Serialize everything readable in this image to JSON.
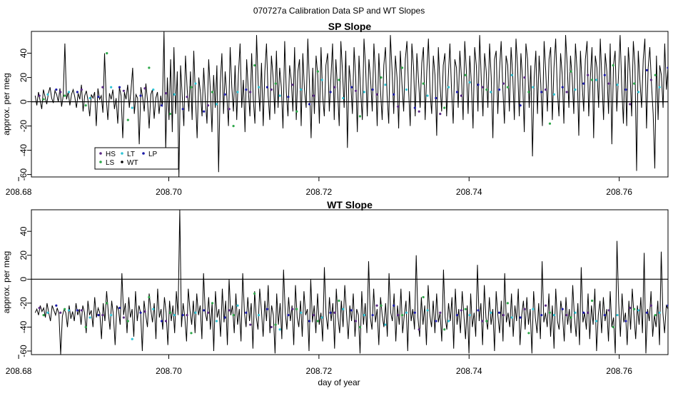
{
  "figure": {
    "title": "070727a   Calibration Data SP and WT Slopes",
    "xlabel": "day of year"
  },
  "chart_data": [
    {
      "type": "line",
      "title": "SP Slope",
      "ylabel": "approx. per meg",
      "xlim": [
        208.6817,
        208.7665
      ],
      "ylim": [
        -62,
        58
      ],
      "x_ticks": [
        "208.68",
        "208.70",
        "208.72",
        "208.74",
        "208.76"
      ],
      "y_ticks": [
        "-60",
        "-40",
        "-20",
        "0",
        "20",
        "40"
      ],
      "reference_line": 0,
      "x_start": 208.6822,
      "x_end": 208.7665,
      "series": [
        {
          "name": "",
          "color": "#000000",
          "values": [
            5,
            -3,
            8,
            1,
            -6,
            10,
            4,
            -2,
            7,
            12,
            3,
            -1,
            9,
            6,
            0,
            11,
            -4,
            5,
            48,
            2,
            8,
            -3,
            6,
            10,
            4,
            -5,
            7,
            2,
            14,
            -8,
            5,
            9,
            1,
            -12,
            6,
            3,
            8,
            -20,
            11,
            2,
            5,
            -9,
            40,
            4,
            -15,
            7,
            2,
            10,
            -6,
            3,
            -18,
            12,
            5,
            -30,
            8,
            2,
            14,
            -5,
            9,
            28,
            -10,
            6,
            3,
            -35,
            12,
            4,
            -8,
            15,
            1,
            -22,
            6,
            10,
            -14,
            3,
            8,
            -10,
            5,
            -4,
            58,
            -40,
            20,
            -15,
            35,
            -25,
            45,
            -10,
            25,
            -62,
            30,
            5,
            -20,
            38,
            10,
            -8,
            25,
            -15,
            42,
            5,
            -30,
            20,
            8,
            -12,
            28,
            2,
            -18,
            35,
            10,
            -25,
            22,
            -5,
            30,
            -58,
            15,
            40,
            -10,
            25,
            5,
            -20,
            45,
            12,
            -8,
            30,
            -15,
            22,
            48,
            -5,
            18,
            -25,
            35,
            10,
            -12,
            40,
            2,
            -18,
            55,
            15,
            -8,
            32,
            -20,
            25,
            48,
            5,
            -15,
            38,
            20,
            -10,
            42,
            -5,
            28,
            12,
            -22,
            50,
            8,
            -12,
            30,
            18,
            -8,
            45,
            -15,
            25,
            35,
            -20,
            40,
            10,
            -5,
            52,
            15,
            -30,
            28,
            -10,
            38,
            22,
            -18,
            45,
            5,
            -12,
            30,
            40,
            -8,
            20,
            48,
            -15,
            35,
            10,
            -20,
            50,
            25,
            -5,
            42,
            -38,
            30,
            15,
            -10,
            45,
            20,
            -25,
            38,
            8,
            -15,
            52,
            28,
            -12,
            35,
            18,
            -8,
            48,
            22,
            -20,
            40,
            10,
            -15,
            30,
            45,
            5,
            -18,
            55,
            25,
            -10,
            38,
            20,
            -22,
            42,
            15,
            -8,
            35,
            50,
            10,
            -20,
            48,
            28,
            -12,
            40,
            18,
            -5,
            32,
            45,
            -15,
            25,
            52,
            8,
            -10,
            38,
            22,
            -28,
            45,
            15,
            -8,
            30,
            40,
            -12,
            20,
            48,
            10,
            -18,
            35,
            28,
            -5,
            42,
            20,
            -15,
            50,
            25,
            -10,
            38,
            15,
            -22,
            45,
            30,
            -8,
            55,
            18,
            -12,
            40,
            25,
            -5,
            48,
            20,
            -30,
            35,
            42,
            -10,
            25,
            50,
            12,
            -18,
            38,
            30,
            -8,
            45,
            22,
            -15,
            52,
            28,
            -12,
            40,
            18,
            -25,
            48,
            35,
            -5,
            30,
            -45,
            20,
            42,
            -10,
            38,
            15,
            -20,
            50,
            25,
            -8,
            35,
            45,
            -15,
            28,
            52,
            10,
            -12,
            40,
            22,
            -18,
            55,
            30,
            -5,
            38,
            20,
            -10,
            48,
            25,
            -28,
            42,
            15,
            -8,
            35,
            50,
            -12,
            20,
            45,
            -30,
            38,
            28,
            -5,
            52,
            18,
            -15,
            40,
            25,
            -10,
            48,
            -35,
            30,
            42,
            -8,
            20,
            55,
            12,
            -18,
            38,
            -20,
            45,
            25,
            -12,
            50,
            30,
            -57,
            42,
            18,
            -5,
            35,
            52,
            -22,
            28,
            45,
            15,
            -10,
            -55,
            38,
            -15,
            30,
            22,
            -5,
            48,
            10,
            28
          ]
        },
        {
          "name": "HS",
          "color": "#5b2a86",
          "marker": "dot",
          "values": [
            5,
            8,
            10,
            12,
            9,
            11,
            7,
            4,
            -3,
            -6,
            8,
            10,
            14,
            5,
            12,
            9,
            6,
            -4,
            -8,
            -10,
            5,
            12,
            15,
            20,
            10,
            8,
            22,
            15,
            -2,
            18
          ]
        },
        {
          "name": "LS",
          "color": "#2ea84a",
          "marker": "dot",
          "values": [
            2,
            5,
            -3,
            40,
            -15,
            28,
            -10,
            12,
            8,
            -20,
            30,
            15,
            -8,
            25,
            18,
            -12,
            20,
            28,
            15,
            -5,
            22,
            10,
            12,
            8,
            -18,
            25,
            18,
            30,
            15,
            22
          ]
        },
        {
          "name": "LT",
          "color": "#2fc4d6",
          "marker": "dot",
          "values": [
            6,
            8,
            3,
            12,
            -5,
            10,
            6,
            15,
            -2,
            8,
            12,
            5,
            10,
            18,
            3,
            8,
            14,
            10,
            5,
            12,
            16,
            8,
            22,
            12,
            6,
            10,
            18,
            14,
            8,
            12
          ]
        },
        {
          "name": "WT",
          "color": "#000000",
          "marker": "dot",
          "values": []
        },
        {
          "name": "LP",
          "color": "#1a1aa8",
          "marker": "dot",
          "values": [
            10,
            8,
            4,
            12,
            5,
            -3,
            -6,
            -8,
            6,
            10,
            12,
            4,
            -2,
            8,
            12,
            10,
            6,
            -5,
            3,
            8,
            14,
            10,
            -3,
            8,
            12,
            15,
            22,
            10,
            26,
            28
          ]
        }
      ],
      "legend": {
        "placement": "bottom-left",
        "entries": [
          "HS",
          "LS",
          "LT",
          "WT",
          "LP"
        ]
      }
    },
    {
      "type": "line",
      "title": "WT Slope",
      "ylabel": "approx. per meg",
      "xlim": [
        208.6817,
        208.7665
      ],
      "ylim": [
        -63,
        58
      ],
      "x_ticks": [
        "208.68",
        "208.70",
        "208.72",
        "208.74",
        "208.76"
      ],
      "y_ticks": [
        "-60",
        "-40",
        "-20",
        "0",
        "20",
        "40"
      ],
      "reference_line": 0,
      "x_start": 208.6822,
      "x_end": 208.7665,
      "series": [
        {
          "name": "",
          "color": "#000000",
          "values": [
            -28,
            -25,
            -30,
            -22,
            -27,
            -24,
            -32,
            -20,
            -28,
            -35,
            -22,
            -26,
            -30,
            -24,
            -29,
            -63,
            -31,
            -25,
            -28,
            -40,
            -22,
            -33,
            -27,
            -35,
            -20,
            -30,
            -25,
            -38,
            -22,
            -28,
            -45,
            -18,
            -30,
            -26,
            -40,
            -15,
            -32,
            -24,
            -28,
            -50,
            -20,
            -35,
            -10,
            -28,
            -42,
            -18,
            -30,
            -55,
            -22,
            -26,
            -38,
            5,
            -30,
            -20,
            -45,
            -15,
            -32,
            -25,
            -48,
            -10,
            -35,
            -22,
            -28,
            -60,
            -18,
            -30,
            -40,
            -12,
            -26,
            -36,
            -20,
            -50,
            -8,
            -32,
            -25,
            -42,
            -15,
            -28,
            -55,
            -18,
            -35,
            -22,
            -45,
            -10,
            -30,
            58,
            -40,
            -20,
            -32,
            -52,
            -8,
            -26,
            -38,
            -18,
            -45,
            -12,
            -30,
            -22,
            -50,
            5,
            -28,
            -35,
            -15,
            -42,
            -20,
            -60,
            -10,
            -32,
            -25,
            -48,
            -8,
            -36,
            -18,
            -55,
            0,
            -30,
            -22,
            -45,
            -12,
            -38,
            -25,
            -52,
            5,
            -28,
            -40,
            -15,
            -35,
            -20,
            -58,
            -10,
            -32,
            -42,
            -8,
            -26,
            -48,
            -18,
            -35,
            -5,
            -45,
            -22,
            -30,
            -62,
            -12,
            -38,
            -20,
            -50,
            8,
            -28,
            -42,
            -15,
            -35,
            -22,
            -55,
            -5,
            -32,
            -40,
            -18,
            -48,
            -10,
            -30,
            -25,
            -60,
            0,
            -36,
            -22,
            -45,
            -12,
            -38,
            -28,
            -52,
            10,
            -30,
            -42,
            -15,
            -35,
            -20,
            -58,
            -8,
            -32,
            -45,
            -18,
            -40,
            -5,
            -28,
            -50,
            -22,
            -35,
            -12,
            -48,
            -25,
            -30,
            -62,
            -10,
            -38,
            -20,
            -45,
            15,
            -32,
            -42,
            -8,
            -36,
            -25,
            -55,
            -15,
            -30,
            -40,
            -20,
            -48,
            5,
            -28,
            -35,
            -12,
            -52,
            -22,
            -38,
            -8,
            -45,
            -30,
            -18,
            -60,
            -10,
            -35,
            -25,
            -42,
            20,
            -32,
            -48,
            -15,
            -38,
            -22,
            -55,
            -5,
            -30,
            -40,
            -18,
            -45,
            -12,
            -36,
            -28,
            -52,
            8,
            -32,
            -42,
            -20,
            -35,
            -15,
            -58,
            -8,
            -38,
            -25,
            -45,
            -10,
            -30,
            -50,
            -22,
            -62,
            -12,
            -40,
            -28,
            -48,
            12,
            -35,
            -20,
            -55,
            -5,
            -32,
            -42,
            -15,
            -38,
            -25,
            -60,
            -10,
            -30,
            -45,
            -18,
            -52,
            5,
            -36,
            -28,
            -40,
            -12,
            -48,
            -22,
            -35,
            -8,
            -55,
            -30,
            -18,
            -42,
            -15,
            -38,
            -25,
            -62,
            -10,
            -32,
            -45,
            -20,
            -50,
            15,
            -36,
            -28,
            -40,
            -12,
            -48,
            -22,
            -58,
            -8,
            -35,
            -42,
            -18,
            -30,
            -52,
            -15,
            -38,
            -25,
            -45,
            -5,
            -32,
            -48,
            -20,
            -55,
            10,
            -36,
            -28,
            -42,
            -12,
            -50,
            -22,
            -38,
            -8,
            -60,
            -30,
            -18,
            -45,
            -15,
            -35,
            -25,
            -52,
            -10,
            -40,
            -32,
            -62,
            32,
            -20,
            -48,
            -12,
            -36,
            -28,
            -55,
            -18,
            -42,
            -8,
            -30,
            -50,
            -22,
            -38,
            -15,
            -45,
            22,
            -62,
            -25,
            -35,
            -10,
            -48,
            -30,
            -40,
            -18,
            -55,
            23,
            -28,
            -45,
            -22,
            -25
          ]
        },
        {
          "name": "HS",
          "color": "#5b2a86",
          "marker": "dot",
          "values": [
            -24,
            -28,
            -26,
            -30,
            -32,
            -27,
            -35,
            -30,
            -28,
            -26,
            -38,
            -40,
            -25,
            -30,
            -28,
            -35,
            -22,
            -30,
            -42,
            -28,
            -26,
            -35,
            -30,
            -25,
            -22,
            -30,
            -28,
            -26,
            -24,
            -22
          ]
        },
        {
          "name": "LS",
          "color": "#2ea84a",
          "marker": "dot",
          "values": [
            -30,
            -25,
            -40,
            -20,
            -35,
            -15,
            -28,
            -45,
            -20,
            -30,
            -12,
            -38,
            -25,
            -35,
            -18,
            -40,
            -22,
            -30,
            -15,
            -42,
            -25,
            -35,
            -20,
            -45,
            -28,
            -32,
            -18,
            -40,
            -25,
            -30
          ]
        },
        {
          "name": "LT",
          "color": "#2fc4d6",
          "marker": "dot",
          "values": [
            -28,
            -26,
            -32,
            -30,
            -50,
            -25,
            -30,
            -28,
            -35,
            -22,
            -30,
            -42,
            -28,
            -32,
            -25,
            -30,
            -38,
            -28,
            -26,
            -35,
            -30,
            -28,
            -32,
            -25,
            -30,
            -28,
            -35,
            -30,
            -26,
            -28
          ]
        },
        {
          "name": "WT",
          "color": "#000000",
          "marker": "dot",
          "values": []
        },
        {
          "name": "LP",
          "color": "#1a1aa8",
          "marker": "dot",
          "values": [
            -22,
            -26,
            -30,
            -24,
            -28,
            -35,
            -30,
            -26,
            -32,
            -28,
            -25,
            -30,
            -35,
            -28,
            -26,
            -30,
            -22,
            -28,
            -35,
            -30,
            -26,
            -28,
            -32,
            -30,
            -25,
            -28,
            -30,
            -35,
            -28,
            -22
          ]
        }
      ]
    }
  ]
}
